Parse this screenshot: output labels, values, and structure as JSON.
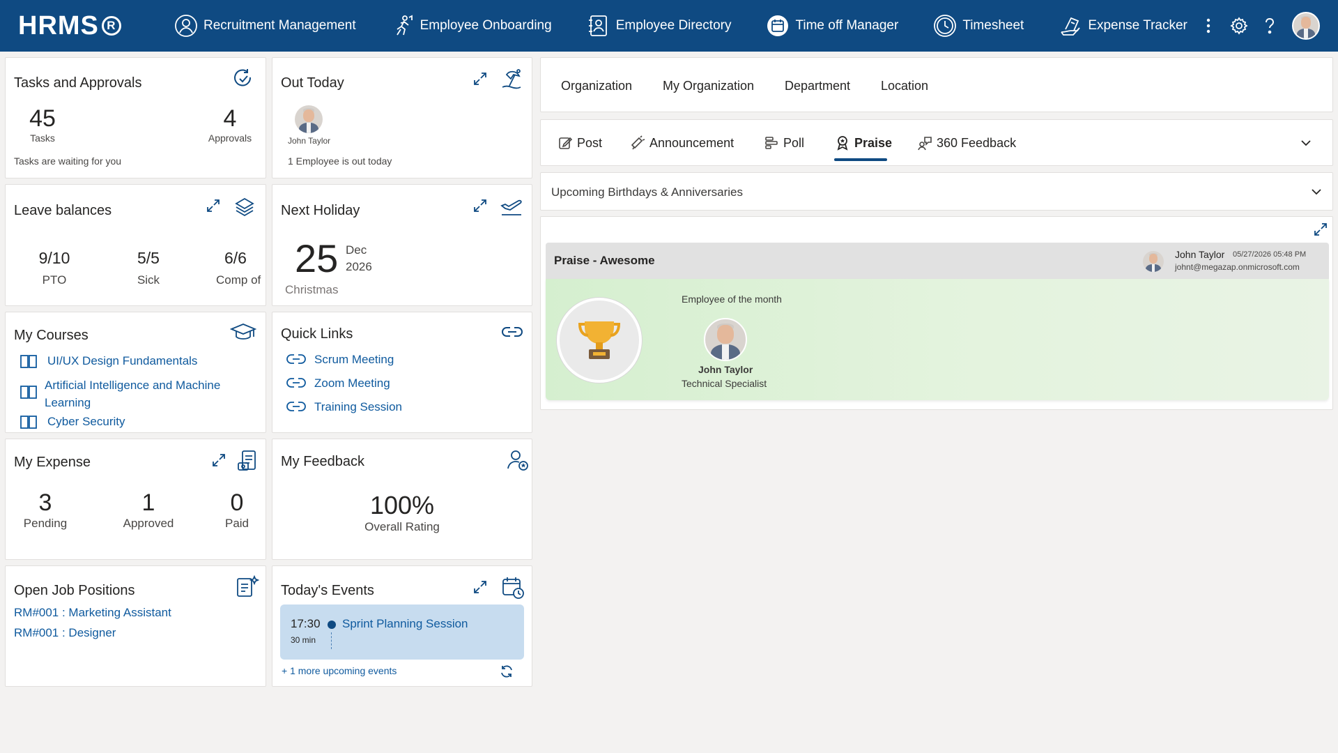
{
  "app": {
    "logo": "HRMS",
    "logo_mark": "R"
  },
  "nav": [
    {
      "label": "Recruitment Management",
      "icon": "recruitment-icon"
    },
    {
      "label": "Employee Onboarding",
      "icon": "onboarding-icon"
    },
    {
      "label": "Employee Directory",
      "icon": "directory-icon"
    },
    {
      "label": "Time off Manager",
      "icon": "calendar-icon"
    },
    {
      "label": "Timesheet",
      "icon": "clock-icon"
    },
    {
      "label": "Expense Tracker",
      "icon": "expense-icon"
    }
  ],
  "tasks": {
    "title": "Tasks and Approvals",
    "tasks_count": "45",
    "tasks_label": "Tasks",
    "approvals_count": "4",
    "approvals_label": "Approvals",
    "footer": "Tasks are waiting for you"
  },
  "out_today": {
    "title": "Out Today",
    "person": "John Taylor",
    "footer": "1 Employee is out today"
  },
  "leave": {
    "title": "Leave balances",
    "items": [
      {
        "value": "9/10",
        "label": "PTO"
      },
      {
        "value": "5/5",
        "label": "Sick"
      },
      {
        "value": "6/6",
        "label": "Comp of"
      }
    ]
  },
  "holiday": {
    "title": "Next Holiday",
    "day": "25",
    "month": "Dec",
    "year": "2026",
    "name": "Christmas"
  },
  "courses": {
    "title": "My Courses",
    "items": [
      "UI/UX Design Fundamentals",
      "Artificial Intelligence and Machine",
      "Learning",
      "Cyber Security"
    ]
  },
  "quick_links": {
    "title": "Quick Links",
    "items": [
      "Scrum Meeting",
      "Zoom Meeting",
      "Training Session"
    ]
  },
  "expense": {
    "title": "My Expense",
    "items": [
      {
        "value": "3",
        "label": "Pending"
      },
      {
        "value": "1",
        "label": "Approved"
      },
      {
        "value": "0",
        "label": "Paid"
      }
    ]
  },
  "feedback": {
    "title": "My Feedback",
    "value": "100%",
    "label": "Overall Rating"
  },
  "jobs": {
    "title": "Open Job Positions",
    "items": [
      "RM#001 : Marketing Assistant",
      "RM#001 : Designer"
    ]
  },
  "events": {
    "title": "Today's Events",
    "time": "17:30",
    "duration": "30 min",
    "name": "Sprint Planning Session",
    "more": "+ 1 more upcoming events"
  },
  "org_tabs": [
    "Organization",
    "My Organization",
    "Department",
    "Location"
  ],
  "post_tabs": [
    {
      "label": "Post",
      "icon": "edit-icon"
    },
    {
      "label": "Announcement",
      "icon": "megaphone-icon"
    },
    {
      "label": "Poll",
      "icon": "poll-icon"
    },
    {
      "label": "Praise",
      "icon": "badge-icon",
      "active": true
    },
    {
      "label": "360 Feedback",
      "icon": "feedback-icon"
    }
  ],
  "birthdays": {
    "label": "Upcoming Birthdays & Anniversaries"
  },
  "praise": {
    "title": "Praise - Awesome",
    "author": "John Taylor",
    "timestamp": "05/27/2026 05:48 PM",
    "email": "johnt@megazap.onmicrosoft.com",
    "award": "Employee of the month",
    "recipient": "John Taylor",
    "role": "Technical Specialist"
  },
  "colors": {
    "brand": "#0f4a82",
    "link": "#0f5a9e",
    "event_bg": "#c7dcef",
    "praise_green": "#d5efcf"
  }
}
